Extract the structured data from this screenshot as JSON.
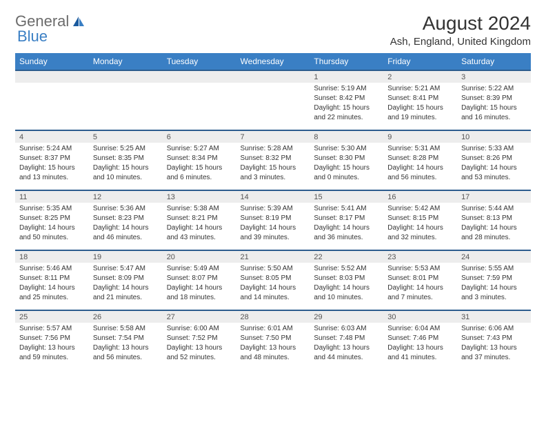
{
  "logo": {
    "text1": "General",
    "text2": "Blue"
  },
  "title": "August 2024",
  "location": "Ash, England, United Kingdom",
  "colors": {
    "header_bg": "#3a7fc4",
    "header_fg": "#ffffff",
    "daynum_bg": "#ededed",
    "row_border": "#2c5c8e"
  },
  "weekdays": [
    "Sunday",
    "Monday",
    "Tuesday",
    "Wednesday",
    "Thursday",
    "Friday",
    "Saturday"
  ],
  "weeks": [
    {
      "nums": [
        "",
        "",
        "",
        "",
        "1",
        "2",
        "3"
      ],
      "cells": [
        {},
        {},
        {},
        {},
        {
          "sunrise": "Sunrise: 5:19 AM",
          "sunset": "Sunset: 8:42 PM",
          "daylight": "Daylight: 15 hours and 22 minutes."
        },
        {
          "sunrise": "Sunrise: 5:21 AM",
          "sunset": "Sunset: 8:41 PM",
          "daylight": "Daylight: 15 hours and 19 minutes."
        },
        {
          "sunrise": "Sunrise: 5:22 AM",
          "sunset": "Sunset: 8:39 PM",
          "daylight": "Daylight: 15 hours and 16 minutes."
        }
      ]
    },
    {
      "nums": [
        "4",
        "5",
        "6",
        "7",
        "8",
        "9",
        "10"
      ],
      "cells": [
        {
          "sunrise": "Sunrise: 5:24 AM",
          "sunset": "Sunset: 8:37 PM",
          "daylight": "Daylight: 15 hours and 13 minutes."
        },
        {
          "sunrise": "Sunrise: 5:25 AM",
          "sunset": "Sunset: 8:35 PM",
          "daylight": "Daylight: 15 hours and 10 minutes."
        },
        {
          "sunrise": "Sunrise: 5:27 AM",
          "sunset": "Sunset: 8:34 PM",
          "daylight": "Daylight: 15 hours and 6 minutes."
        },
        {
          "sunrise": "Sunrise: 5:28 AM",
          "sunset": "Sunset: 8:32 PM",
          "daylight": "Daylight: 15 hours and 3 minutes."
        },
        {
          "sunrise": "Sunrise: 5:30 AM",
          "sunset": "Sunset: 8:30 PM",
          "daylight": "Daylight: 15 hours and 0 minutes."
        },
        {
          "sunrise": "Sunrise: 5:31 AM",
          "sunset": "Sunset: 8:28 PM",
          "daylight": "Daylight: 14 hours and 56 minutes."
        },
        {
          "sunrise": "Sunrise: 5:33 AM",
          "sunset": "Sunset: 8:26 PM",
          "daylight": "Daylight: 14 hours and 53 minutes."
        }
      ]
    },
    {
      "nums": [
        "11",
        "12",
        "13",
        "14",
        "15",
        "16",
        "17"
      ],
      "cells": [
        {
          "sunrise": "Sunrise: 5:35 AM",
          "sunset": "Sunset: 8:25 PM",
          "daylight": "Daylight: 14 hours and 50 minutes."
        },
        {
          "sunrise": "Sunrise: 5:36 AM",
          "sunset": "Sunset: 8:23 PM",
          "daylight": "Daylight: 14 hours and 46 minutes."
        },
        {
          "sunrise": "Sunrise: 5:38 AM",
          "sunset": "Sunset: 8:21 PM",
          "daylight": "Daylight: 14 hours and 43 minutes."
        },
        {
          "sunrise": "Sunrise: 5:39 AM",
          "sunset": "Sunset: 8:19 PM",
          "daylight": "Daylight: 14 hours and 39 minutes."
        },
        {
          "sunrise": "Sunrise: 5:41 AM",
          "sunset": "Sunset: 8:17 PM",
          "daylight": "Daylight: 14 hours and 36 minutes."
        },
        {
          "sunrise": "Sunrise: 5:42 AM",
          "sunset": "Sunset: 8:15 PM",
          "daylight": "Daylight: 14 hours and 32 minutes."
        },
        {
          "sunrise": "Sunrise: 5:44 AM",
          "sunset": "Sunset: 8:13 PM",
          "daylight": "Daylight: 14 hours and 28 minutes."
        }
      ]
    },
    {
      "nums": [
        "18",
        "19",
        "20",
        "21",
        "22",
        "23",
        "24"
      ],
      "cells": [
        {
          "sunrise": "Sunrise: 5:46 AM",
          "sunset": "Sunset: 8:11 PM",
          "daylight": "Daylight: 14 hours and 25 minutes."
        },
        {
          "sunrise": "Sunrise: 5:47 AM",
          "sunset": "Sunset: 8:09 PM",
          "daylight": "Daylight: 14 hours and 21 minutes."
        },
        {
          "sunrise": "Sunrise: 5:49 AM",
          "sunset": "Sunset: 8:07 PM",
          "daylight": "Daylight: 14 hours and 18 minutes."
        },
        {
          "sunrise": "Sunrise: 5:50 AM",
          "sunset": "Sunset: 8:05 PM",
          "daylight": "Daylight: 14 hours and 14 minutes."
        },
        {
          "sunrise": "Sunrise: 5:52 AM",
          "sunset": "Sunset: 8:03 PM",
          "daylight": "Daylight: 14 hours and 10 minutes."
        },
        {
          "sunrise": "Sunrise: 5:53 AM",
          "sunset": "Sunset: 8:01 PM",
          "daylight": "Daylight: 14 hours and 7 minutes."
        },
        {
          "sunrise": "Sunrise: 5:55 AM",
          "sunset": "Sunset: 7:59 PM",
          "daylight": "Daylight: 14 hours and 3 minutes."
        }
      ]
    },
    {
      "nums": [
        "25",
        "26",
        "27",
        "28",
        "29",
        "30",
        "31"
      ],
      "cells": [
        {
          "sunrise": "Sunrise: 5:57 AM",
          "sunset": "Sunset: 7:56 PM",
          "daylight": "Daylight: 13 hours and 59 minutes."
        },
        {
          "sunrise": "Sunrise: 5:58 AM",
          "sunset": "Sunset: 7:54 PM",
          "daylight": "Daylight: 13 hours and 56 minutes."
        },
        {
          "sunrise": "Sunrise: 6:00 AM",
          "sunset": "Sunset: 7:52 PM",
          "daylight": "Daylight: 13 hours and 52 minutes."
        },
        {
          "sunrise": "Sunrise: 6:01 AM",
          "sunset": "Sunset: 7:50 PM",
          "daylight": "Daylight: 13 hours and 48 minutes."
        },
        {
          "sunrise": "Sunrise: 6:03 AM",
          "sunset": "Sunset: 7:48 PM",
          "daylight": "Daylight: 13 hours and 44 minutes."
        },
        {
          "sunrise": "Sunrise: 6:04 AM",
          "sunset": "Sunset: 7:46 PM",
          "daylight": "Daylight: 13 hours and 41 minutes."
        },
        {
          "sunrise": "Sunrise: 6:06 AM",
          "sunset": "Sunset: 7:43 PM",
          "daylight": "Daylight: 13 hours and 37 minutes."
        }
      ]
    }
  ]
}
